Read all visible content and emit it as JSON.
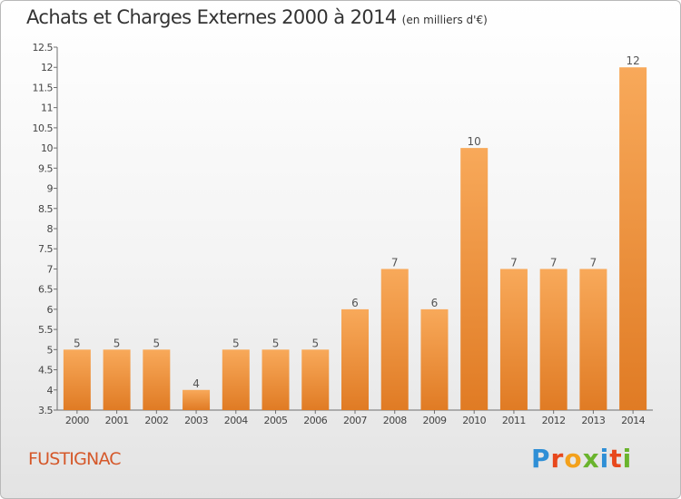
{
  "title": "Achats et Charges Externes 2000 à 2014",
  "unit": "(en milliers d'€)",
  "commune": "FUSTIGNAC",
  "logo": {
    "text": "Proxiti",
    "letter_colors": [
      "#2f8fd6",
      "#e8481c",
      "#f3a11c",
      "#6ab42d",
      "#2f8fd6",
      "#e8481c",
      "#6ab42d"
    ]
  },
  "colors": {
    "bar_light": "#f8a95a",
    "bar_dark": "#e07b24",
    "accent": "#d5582a"
  },
  "chart_data": {
    "type": "bar",
    "categories": [
      "2000",
      "2001",
      "2002",
      "2003",
      "2004",
      "2005",
      "2006",
      "2007",
      "2008",
      "2009",
      "2010",
      "2011",
      "2012",
      "2013",
      "2014"
    ],
    "values": [
      5,
      5,
      5,
      4,
      5,
      5,
      5,
      6,
      7,
      6,
      10,
      7,
      7,
      7,
      12
    ],
    "data_labels": [
      "5",
      "5",
      "5",
      "4",
      "5",
      "5",
      "5",
      "6",
      "7",
      "6",
      "10",
      "7",
      "7",
      "7",
      "12"
    ],
    "title": "Achats et Charges Externes 2000 à 2014",
    "xlabel": "",
    "ylabel": "",
    "ylim": [
      3.5,
      12.5
    ],
    "yticks": [
      "3.5",
      "4",
      "4.5",
      "5",
      "5.5",
      "6",
      "6.5",
      "7",
      "7.5",
      "8",
      "8.5",
      "9",
      "9.5",
      "10",
      "10.5",
      "11",
      "11.5",
      "12",
      "12.5"
    ],
    "grid": false,
    "legend": "none"
  }
}
